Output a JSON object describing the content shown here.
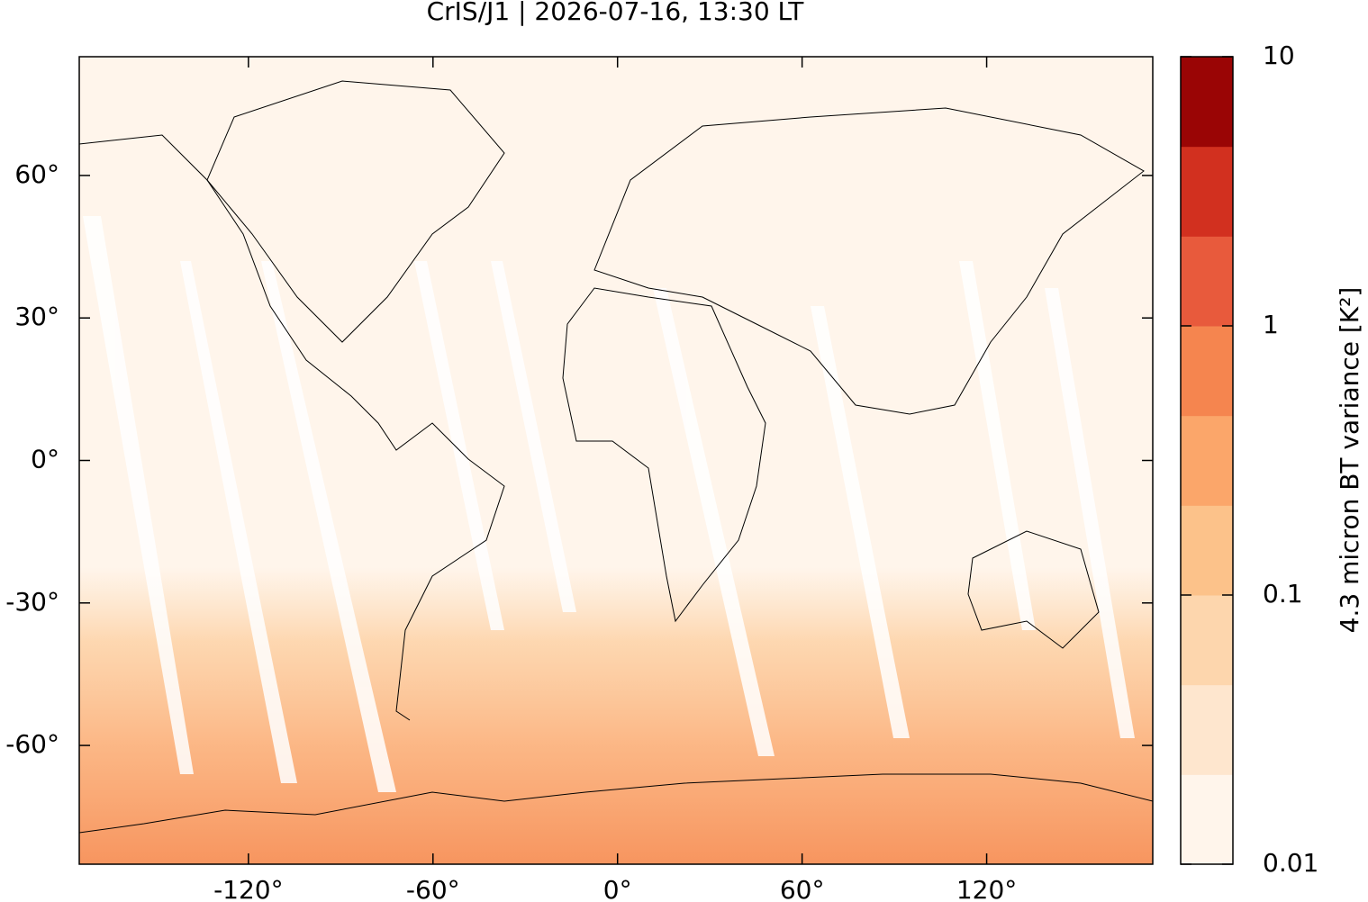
{
  "chart_data": {
    "type": "map",
    "title": "CrIS/J1 | 2026-07-16, 13:30 LT",
    "xlim": [
      -175,
      174
    ],
    "ylim": [
      -85,
      85
    ],
    "xticks": [
      {
        "value": -120,
        "label": "-120°"
      },
      {
        "value": -60,
        "label": "-60°"
      },
      {
        "value": 0,
        "label": "0°"
      },
      {
        "value": 60,
        "label": "60°"
      },
      {
        "value": 120,
        "label": "120°"
      }
    ],
    "yticks": [
      {
        "value": 60,
        "label": "60°"
      },
      {
        "value": 30,
        "label": "30°"
      },
      {
        "value": 0,
        "label": "0°"
      },
      {
        "value": -30,
        "label": "-30°"
      },
      {
        "value": -60,
        "label": "-60°"
      }
    ],
    "colorbar": {
      "label": "4.3 micron BT variance [K²]",
      "log": true,
      "lim": [
        0.01,
        10
      ],
      "ticks": [
        0.01,
        0.1,
        1,
        10
      ],
      "colors": [
        "#fff5eb",
        "#fee6ce",
        "#fdd6ad",
        "#fcc28a",
        "#fba66a",
        "#f5854f",
        "#e85a3c",
        "#d2301f",
        "#9a0505"
      ]
    }
  }
}
